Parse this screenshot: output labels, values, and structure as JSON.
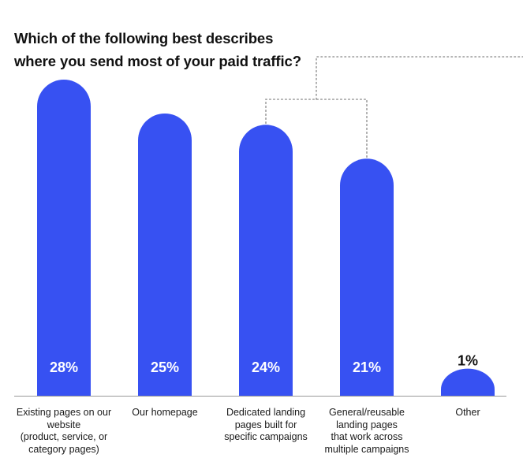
{
  "chart_data": {
    "type": "bar",
    "title_lines": [
      "Which of the following best describes",
      "where you send most of your paid traffic?"
    ],
    "categories": [
      [
        "Existing pages on our",
        "website",
        "(product, service, or",
        "category pages)"
      ],
      [
        "Our homepage"
      ],
      [
        "Dedicated landing",
        "pages built for",
        "specific campaigns"
      ],
      [
        "General/reusable",
        "landing pages",
        "that work across",
        "multiple campaigns"
      ],
      [
        "Other"
      ]
    ],
    "values": [
      28,
      25,
      24,
      21,
      1
    ],
    "value_labels": [
      "28%",
      "25%",
      "24%",
      "21%",
      "1%"
    ],
    "ylim": [
      0,
      28
    ],
    "grid": false,
    "legend": "none",
    "bar_color": "#3751f2",
    "inside_label_color": "#ffffff",
    "outside_label_color": "#111111",
    "baseline_color": "#999999",
    "bracket_color": "#9a9a9a",
    "bracket_groups": [
      [
        2,
        3
      ]
    ]
  }
}
